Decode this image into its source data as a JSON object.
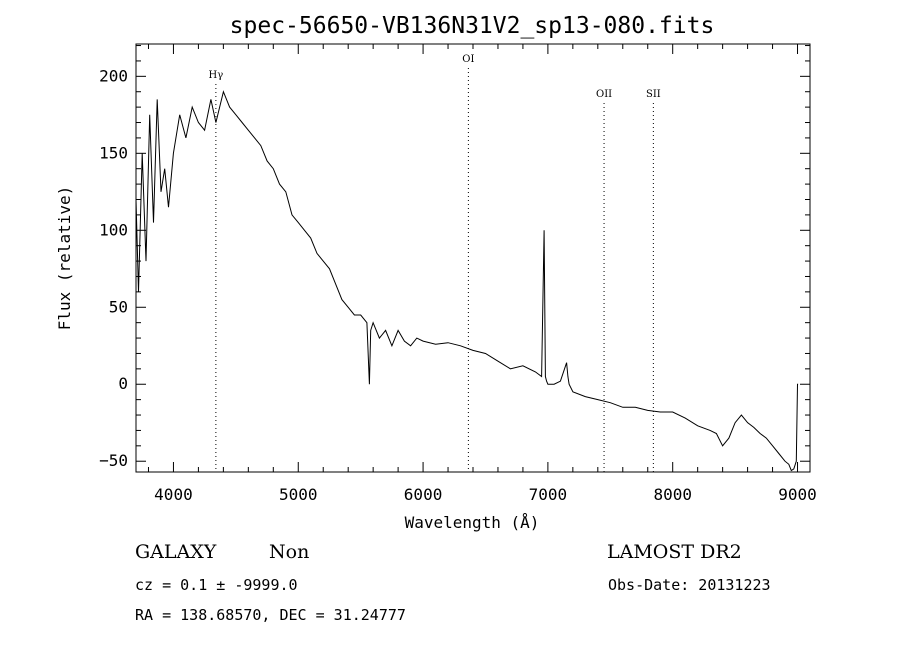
{
  "chart_data": {
    "type": "line",
    "title": "spec-56650-VB136N31V2_sp13-080.fits",
    "xlabel": "Wavelength (Å)",
    "ylabel": "Flux (relative)",
    "xlim": [
      3700,
      9100
    ],
    "ylim": [
      -57,
      221
    ],
    "xticks": [
      4000,
      5000,
      6000,
      7000,
      8000,
      9000
    ],
    "yticks": [
      -50,
      0,
      50,
      100,
      150,
      200
    ],
    "grid": false,
    "series": [
      {
        "x": [
          3700,
          3720,
          3750,
          3780,
          3810,
          3840,
          3870,
          3900,
          3930,
          3960,
          4000,
          4050,
          4100,
          4150,
          4200,
          4250,
          4300,
          4340,
          4400,
          4450,
          4500,
          4550,
          4600,
          4650,
          4700,
          4750,
          4800,
          4850,
          4900,
          4950,
          5000,
          5050,
          5100,
          5150,
          5200,
          5250,
          5300,
          5350,
          5400,
          5450,
          5500,
          5550,
          5570,
          5580,
          5600,
          5650,
          5700,
          5750,
          5800,
          5850,
          5900,
          5950,
          6000,
          6100,
          6200,
          6300,
          6400,
          6500,
          6600,
          6700,
          6800,
          6900,
          6950,
          6970,
          6980,
          6990,
          7000,
          7050,
          7100,
          7150,
          7160,
          7170,
          7200,
          7300,
          7400,
          7500,
          7600,
          7700,
          7800,
          7900,
          8000,
          8100,
          8200,
          8300,
          8350,
          8400,
          8450,
          8500,
          8550,
          8600,
          8650,
          8700,
          8750,
          8800,
          8850,
          8900,
          8930,
          8950,
          8970,
          8990,
          9000,
          9005
        ],
        "y": [
          120,
          60,
          150,
          80,
          175,
          105,
          185,
          125,
          140,
          115,
          150,
          175,
          160,
          180,
          170,
          165,
          185,
          170,
          190,
          180,
          175,
          170,
          165,
          160,
          155,
          145,
          140,
          130,
          125,
          110,
          105,
          100,
          95,
          85,
          80,
          75,
          65,
          55,
          50,
          45,
          45,
          40,
          0,
          35,
          40,
          30,
          35,
          25,
          35,
          28,
          25,
          30,
          28,
          26,
          27,
          25,
          22,
          20,
          15,
          10,
          12,
          8,
          5,
          100,
          5,
          2,
          0,
          0,
          2,
          14,
          5,
          0,
          -5,
          -8,
          -10,
          -12,
          -15,
          -15,
          -17,
          -18,
          -18,
          -22,
          -27,
          -30,
          -32,
          -40,
          -35,
          -25,
          -20,
          -25,
          -28,
          -32,
          -35,
          -40,
          -45,
          -50,
          -52,
          -56,
          -55,
          -50,
          0,
          0
        ]
      }
    ],
    "lines": [
      {
        "label": "Hγ",
        "x": 4340
      },
      {
        "label": "OI",
        "x": 6363
      },
      {
        "label": "OII",
        "x": 7450
      },
      {
        "label": "SII",
        "x": 7845
      }
    ]
  },
  "info": {
    "class": "GALAXY",
    "subclass": "Non",
    "survey": "LAMOST DR2",
    "cz": "cz = 0.1 ± -9999.0",
    "obsdate": "Obs-Date: 20131223",
    "radec": "RA = 138.68570, DEC =  31.24777"
  }
}
